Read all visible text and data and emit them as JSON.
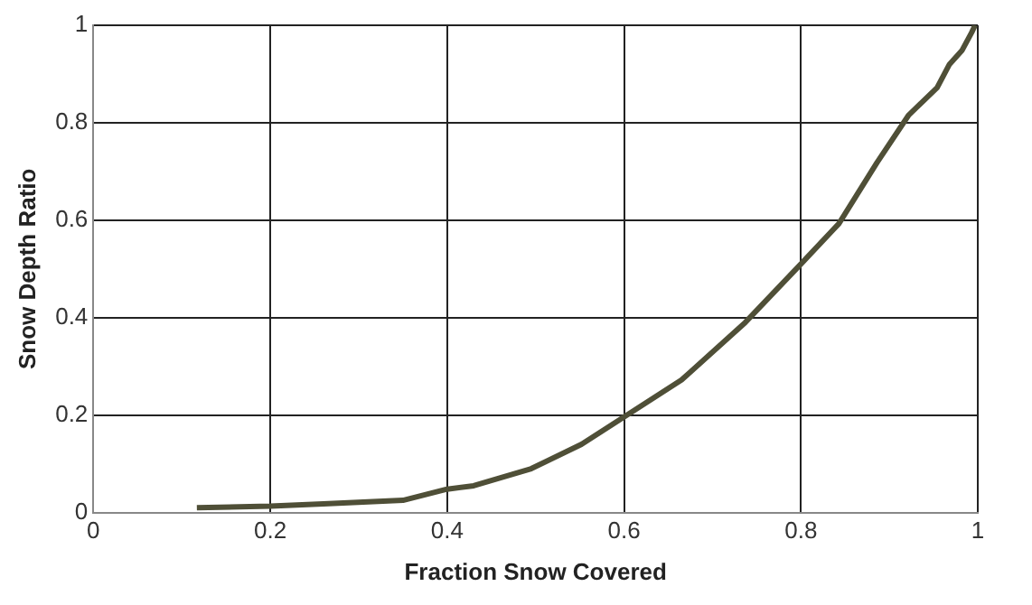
{
  "chart_data": {
    "type": "line",
    "xlabel": "Fraction Snow Covered",
    "ylabel": "Snow Depth Ratio",
    "x": [
      0.117,
      0.2,
      0.26,
      0.35,
      0.4,
      0.43,
      0.495,
      0.552,
      0.6,
      0.665,
      0.737,
      0.8,
      0.843,
      0.886,
      0.922,
      0.954,
      0.968,
      0.982,
      0.993,
      0.997
    ],
    "series": [
      {
        "color": "#4f4f37",
        "values": [
          0.01,
          0.013,
          0.018,
          0.025,
          0.048,
          0.055,
          0.09,
          0.14,
          0.196,
          0.272,
          0.39,
          0.51,
          0.593,
          0.718,
          0.816,
          0.872,
          0.92,
          0.948,
          0.985,
          1.0
        ]
      }
    ],
    "xlim": [
      0,
      1
    ],
    "xticks": [
      0,
      0.2,
      0.4,
      0.6,
      0.8,
      1
    ],
    "ylim": [
      0,
      1
    ],
    "yticks": [
      0,
      0.2,
      0.4,
      0.6,
      0.8,
      1
    ],
    "grid": true,
    "legend": false,
    "marker": "none",
    "line_style": "solid"
  }
}
